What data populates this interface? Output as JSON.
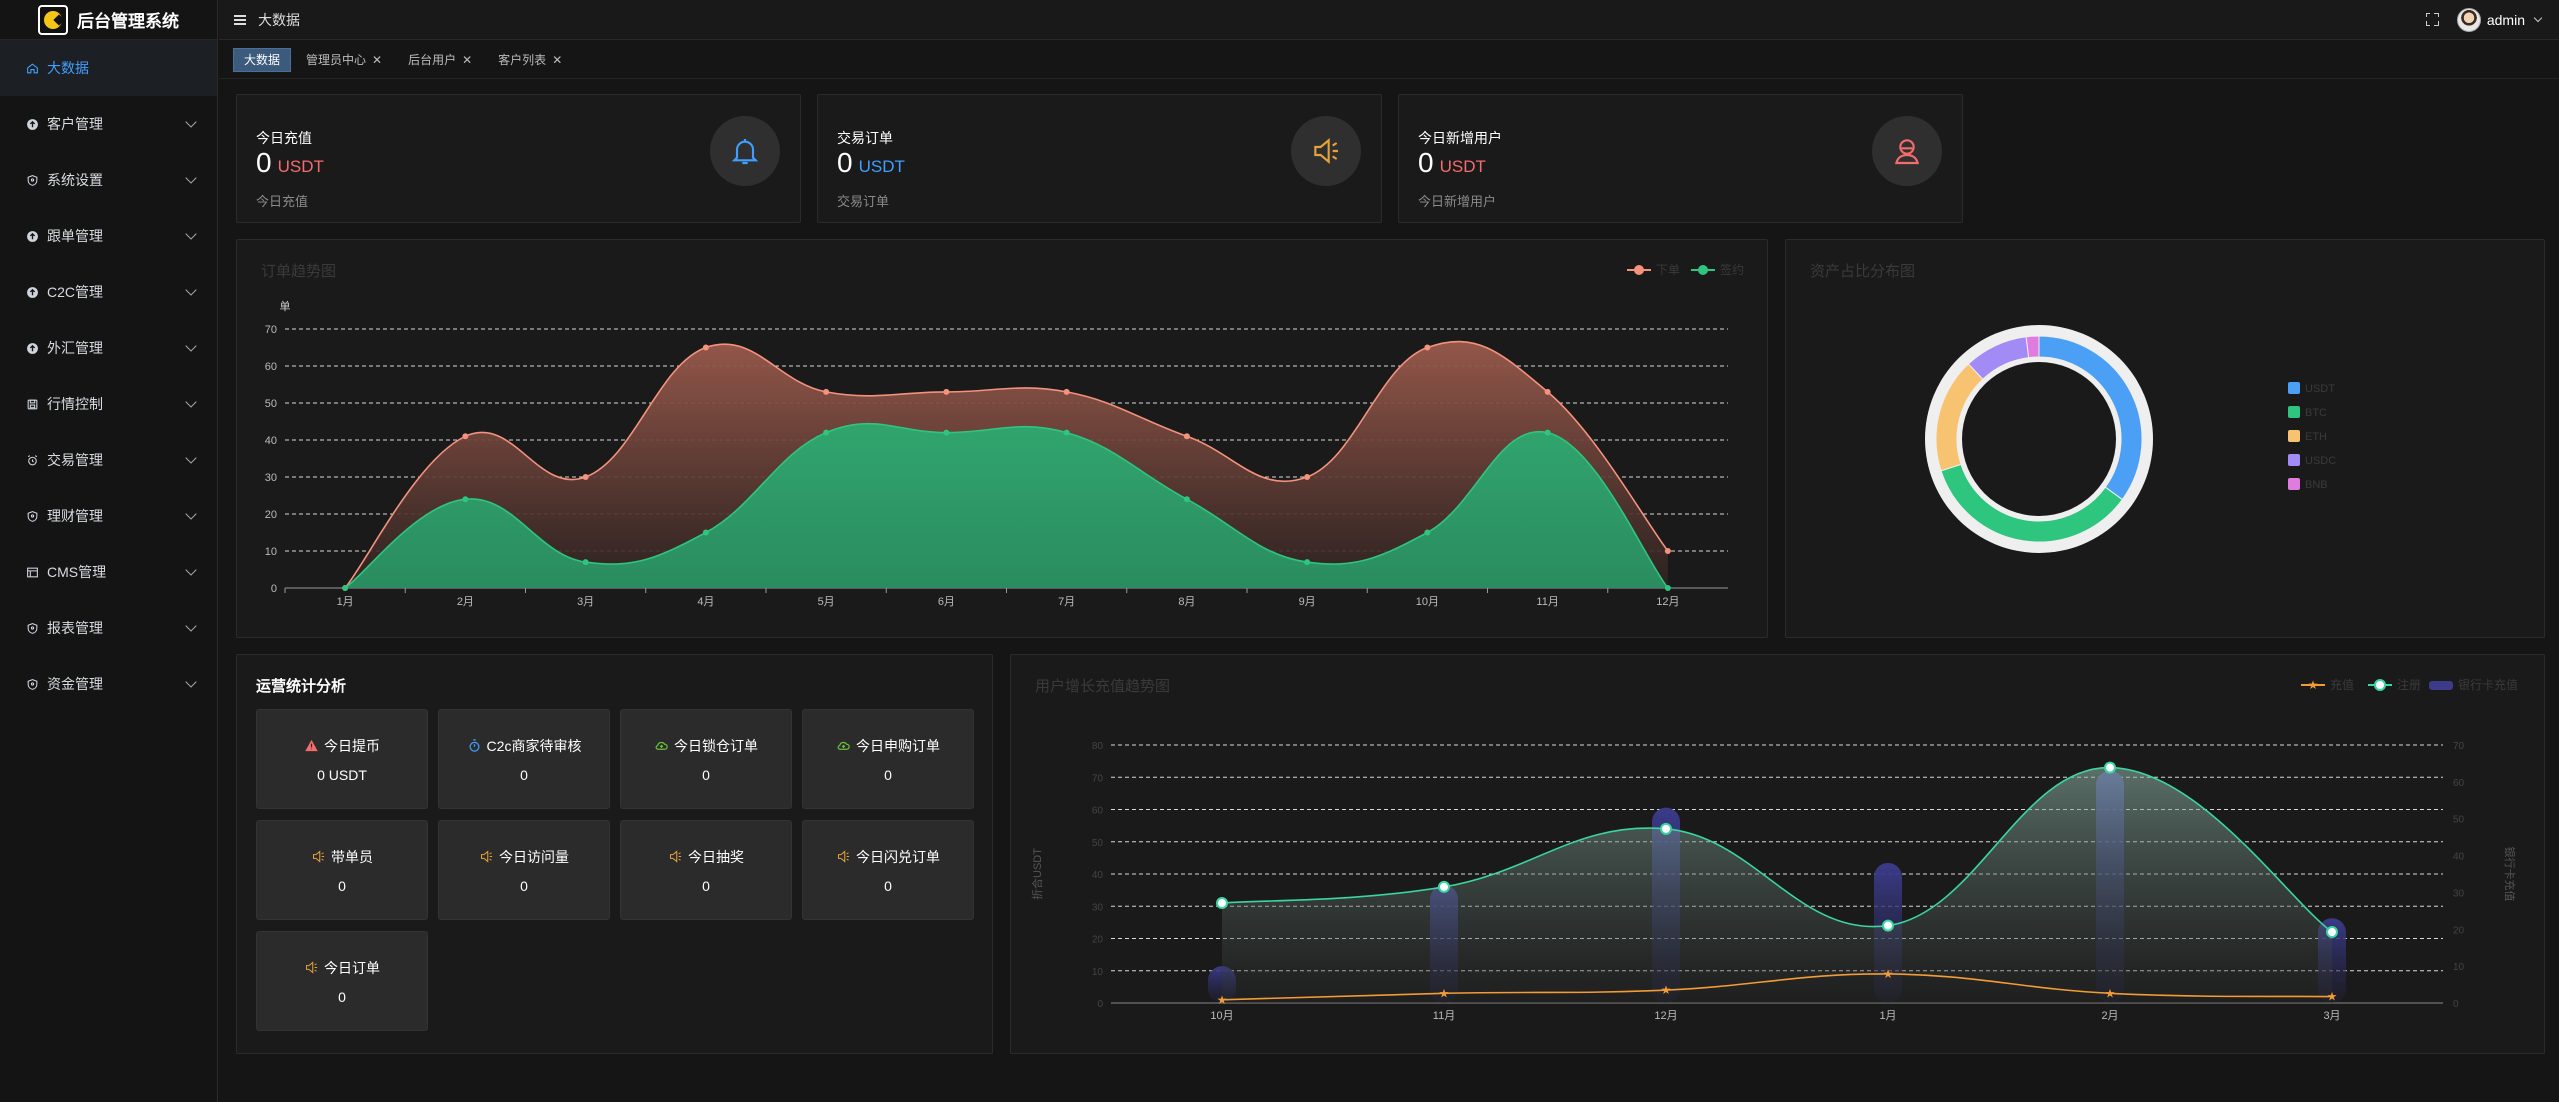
{
  "app": {
    "title": "后台管理系统"
  },
  "sidebar": {
    "items": [
      {
        "label": "大数据",
        "icon": "home-icon",
        "active": true
      },
      {
        "label": "客户管理",
        "icon": "upload-circle-icon"
      },
      {
        "label": "系统设置",
        "icon": "shield-icon"
      },
      {
        "label": "跟单管理",
        "icon": "upload-circle-icon"
      },
      {
        "label": "C2C管理",
        "icon": "upload-circle-icon"
      },
      {
        "label": "外汇管理",
        "icon": "upload-circle-icon"
      },
      {
        "label": "行情控制",
        "icon": "save-icon"
      },
      {
        "label": "交易管理",
        "icon": "alarm-clock-icon"
      },
      {
        "label": "理财管理",
        "icon": "shield-icon"
      },
      {
        "label": "CMS管理",
        "icon": "document-icon"
      },
      {
        "label": "报表管理",
        "icon": "shield-icon"
      },
      {
        "label": "资金管理",
        "icon": "shield-icon"
      }
    ]
  },
  "topbar": {
    "breadcrumb": "大数据",
    "username": "admin"
  },
  "tabs": [
    {
      "label": "大数据",
      "active": true,
      "closable": false
    },
    {
      "label": "管理员中心",
      "closable": true
    },
    {
      "label": "后台用户",
      "closable": true
    },
    {
      "label": "客户列表",
      "closable": true
    }
  ],
  "stats": [
    {
      "title": "今日充值",
      "value": "0",
      "unit": "USDT",
      "unit_color": "#f56c6c",
      "subtitle": "今日充值",
      "icon": "bell-icon",
      "icon_color": "#409eff"
    },
    {
      "title": "交易订单",
      "value": "0",
      "unit": "USDT",
      "unit_color": "#409eff",
      "subtitle": "交易订单",
      "icon": "speaker-icon",
      "icon_color": "#e6a23c"
    },
    {
      "title": "今日新增用户",
      "value": "0",
      "unit": "USDT",
      "unit_color": "#f56c6c",
      "subtitle": "今日新增用户",
      "icon": "user-icon",
      "icon_color": "#f56c6c"
    }
  ],
  "ops": {
    "title": "运营统计分析",
    "cards": [
      {
        "label": "今日提币",
        "value": "0 USDT",
        "icon": "warning-icon",
        "icon_color": "#f56c6c"
      },
      {
        "label": "C2c商家待审核",
        "value": "0",
        "icon": "stopwatch-icon",
        "icon_color": "#409eff"
      },
      {
        "label": "今日锁仓订单",
        "value": "0",
        "icon": "cloud-icon",
        "icon_color": "#67c23a"
      },
      {
        "label": "今日申购订单",
        "value": "0",
        "icon": "cloud-icon",
        "icon_color": "#67c23a"
      },
      {
        "label": "带单员",
        "value": "0",
        "icon": "speaker-icon",
        "icon_color": "#e6a23c"
      },
      {
        "label": "今日访问量",
        "value": "0",
        "icon": "speaker-icon",
        "icon_color": "#e6a23c"
      },
      {
        "label": "今日抽奖",
        "value": "0",
        "icon": "speaker-icon",
        "icon_color": "#e6a23c"
      },
      {
        "label": "今日闪兑订单",
        "value": "0",
        "icon": "speaker-icon",
        "icon_color": "#e6a23c"
      },
      {
        "label": "今日订单",
        "value": "0",
        "icon": "speaker-icon",
        "icon_color": "#e6a23c"
      }
    ]
  },
  "chart_data": [
    {
      "type": "area",
      "title": "订单趋势图",
      "ylabel": "单",
      "categories": [
        "1月",
        "2月",
        "3月",
        "4月",
        "5月",
        "6月",
        "7月",
        "8月",
        "9月",
        "10月",
        "11月",
        "12月"
      ],
      "ylim": [
        0,
        70
      ],
      "yticks": [
        0,
        10,
        20,
        30,
        40,
        50,
        60,
        70
      ],
      "grid": true,
      "legend_position": "top-right",
      "series": [
        {
          "name": "下单",
          "color": "#f4927e",
          "values": [
            0,
            41,
            30,
            65,
            53,
            53,
            53,
            41,
            30,
            65,
            53,
            10
          ]
        },
        {
          "name": "签约",
          "color": "#2ec57f",
          "values": [
            0,
            24,
            7,
            15,
            42,
            42,
            42,
            24,
            7,
            15,
            42,
            0
          ]
        }
      ]
    },
    {
      "type": "pie",
      "title": "资产占比分布图",
      "legend_position": "right",
      "series": [
        {
          "name": "USDT",
          "value": 35,
          "color": "#4b9ff5"
        },
        {
          "name": "BTC",
          "value": 35,
          "color": "#2ec57f"
        },
        {
          "name": "ETH",
          "value": 18,
          "color": "#f8c371"
        },
        {
          "name": "USDC",
          "value": 10,
          "color": "#a38bf5"
        },
        {
          "name": "BNB",
          "value": 2,
          "color": "#e07cdf"
        }
      ]
    },
    {
      "type": "line",
      "title": "用户增长充值趋势图",
      "categories": [
        "10月",
        "11月",
        "12月",
        "1月",
        "2月",
        "3月"
      ],
      "ylabel": "折合USDT",
      "ylabel_right": "银行卡充值",
      "ylim": [
        0,
        80
      ],
      "yticks": [
        0,
        10,
        20,
        30,
        40,
        50,
        60,
        70,
        80
      ],
      "ylim_right": [
        0,
        70
      ],
      "yticks_right": [
        0,
        10,
        20,
        30,
        40,
        50,
        60,
        70
      ],
      "grid": true,
      "legend_position": "top-right",
      "series": [
        {
          "name": "充值",
          "type": "line",
          "color": "#f39c35",
          "values": [
            1,
            3,
            4,
            9,
            3,
            2
          ]
        },
        {
          "name": "注册",
          "type": "area",
          "color": "#3ad6a0",
          "values": [
            31,
            36,
            54,
            24,
            73,
            22
          ]
        },
        {
          "name": "银行卡充值",
          "type": "bar",
          "color": "#3a3a78",
          "values": [
            10,
            32,
            53,
            38,
            63,
            23
          ]
        }
      ]
    }
  ]
}
